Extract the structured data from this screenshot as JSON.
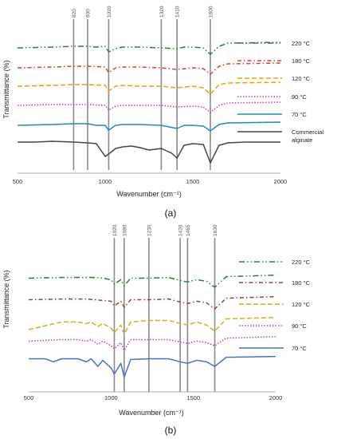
{
  "chart_data": [
    {
      "type": "line",
      "panel_label": "(a)",
      "xlabel": "Wavenumber (cm⁻¹)",
      "ylabel": "Transmittance (%)",
      "xlim": [
        500,
        2000
      ],
      "x_ticks": [
        "500",
        "1000",
        "1500",
        "2000"
      ],
      "reference_lines": [
        "820",
        "900",
        "1020",
        "1320",
        "1410",
        "1600"
      ],
      "legend_position": "right",
      "series": [
        {
          "name": "220 °C",
          "color": "#2e7d32",
          "dash": "7,3,1.5,3,1.5,3",
          "offset": 0,
          "x": [
            500,
            700,
            820,
            900,
            950,
            1000,
            1020,
            1060,
            1100,
            1200,
            1320,
            1410,
            1450,
            1500,
            1560,
            1600,
            1650,
            1700,
            2000
          ],
          "y": [
            10,
            9,
            8,
            8,
            9,
            8,
            15,
            11,
            9,
            9,
            10,
            11,
            9,
            9,
            10,
            18,
            8,
            4,
            3
          ]
        },
        {
          "name": "180 °C",
          "color": "#e53935",
          "dash": "5,3,1.5,3",
          "offset": 1,
          "x": [
            500,
            700,
            820,
            900,
            1000,
            1020,
            1060,
            1100,
            1200,
            1320,
            1410,
            1500,
            1560,
            1600,
            1650,
            1700,
            2000
          ],
          "y": [
            10,
            9,
            8,
            8,
            9,
            16,
            10,
            9,
            9,
            10,
            12,
            10,
            11,
            18,
            8,
            5,
            4
          ]
        },
        {
          "name": "120 °C",
          "color": "#ff9800",
          "dash": "6,3",
          "offset": 2,
          "x": [
            500,
            700,
            820,
            900,
            1000,
            1020,
            1060,
            1100,
            1200,
            1320,
            1410,
            1500,
            1560,
            1600,
            1650,
            1700,
            2000
          ],
          "y": [
            10,
            9,
            8,
            8,
            9,
            16,
            10,
            9,
            10,
            10,
            12,
            10,
            12,
            20,
            8,
            6,
            5
          ]
        },
        {
          "name": "90 °C",
          "color": "#cc33cc",
          "dash": "1.5,2",
          "offset": 3,
          "x": [
            500,
            700,
            820,
            900,
            1000,
            1020,
            1060,
            1100,
            1200,
            1320,
            1410,
            1500,
            1560,
            1600,
            1650,
            1700,
            2000
          ],
          "y": [
            10,
            9,
            9,
            9,
            10,
            16,
            11,
            10,
            10,
            10,
            12,
            11,
            12,
            19,
            10,
            7,
            6
          ]
        },
        {
          "name": "70 °C",
          "color": "#1f8ac0",
          "dash": "",
          "offset": 4,
          "x": [
            500,
            700,
            820,
            900,
            950,
            1000,
            1020,
            1060,
            1100,
            1200,
            1320,
            1410,
            1450,
            1500,
            1560,
            1600,
            1650,
            1700,
            2000
          ],
          "y": [
            12,
            11,
            10,
            10,
            12,
            12,
            18,
            12,
            11,
            11,
            12,
            16,
            12,
            12,
            13,
            19,
            11,
            9,
            8
          ]
        },
        {
          "name": "Commercial alginate",
          "color": "#444444",
          "dash": "",
          "offset": 5,
          "x": [
            500,
            600,
            700,
            820,
            900,
            950,
            1000,
            1020,
            1060,
            1100,
            1150,
            1200,
            1250,
            1320,
            1380,
            1410,
            1450,
            1500,
            1560,
            1600,
            1650,
            1700,
            1800,
            2000
          ],
          "y": [
            10,
            10,
            9,
            10,
            11,
            12,
            28,
            25,
            18,
            16,
            15,
            17,
            20,
            18,
            24,
            30,
            14,
            12,
            13,
            36,
            14,
            11,
            10,
            10
          ]
        }
      ]
    },
    {
      "type": "line",
      "panel_label": "(b)",
      "xlabel": "Wavenumber (cm⁻¹)",
      "ylabel": "Transmittance (%)",
      "xlim": [
        500,
        2000
      ],
      "x_ticks": [
        "500",
        "1000",
        "1500",
        "2000"
      ],
      "reference_lines": [
        "1020",
        "1080",
        "1230",
        "1420",
        "1465",
        "1630"
      ],
      "legend_position": "right",
      "series": [
        {
          "name": "220 °C",
          "color": "#2e7d32",
          "dash": "7,3,1.5,3,1.5,3",
          "offset": 0,
          "x": [
            500,
            700,
            850,
            900,
            950,
            1000,
            1020,
            1060,
            1080,
            1120,
            1230,
            1350,
            1420,
            1465,
            1520,
            1580,
            1630,
            1700,
            2000
          ],
          "y": [
            10,
            9,
            9,
            9,
            10,
            12,
            18,
            12,
            20,
            10,
            10,
            9,
            13,
            15,
            12,
            14,
            22,
            8,
            6
          ]
        },
        {
          "name": "180 °C",
          "color": "#8b4a3a",
          "dash": "5,3,1.5,3",
          "offset": 1,
          "x": [
            500,
            700,
            850,
            900,
            1000,
            1020,
            1060,
            1080,
            1120,
            1230,
            1350,
            1420,
            1465,
            1520,
            1580,
            1630,
            1700,
            2000
          ],
          "y": [
            10,
            9,
            9,
            10,
            12,
            18,
            12,
            20,
            10,
            10,
            9,
            13,
            15,
            12,
            14,
            22,
            8,
            6
          ]
        },
        {
          "name": "120 °C",
          "color": "#d4b012",
          "dash": "6,3",
          "offset": 2,
          "x": [
            500,
            700,
            800,
            850,
            880,
            920,
            950,
            1000,
            1020,
            1060,
            1080,
            1120,
            1230,
            1350,
            1420,
            1465,
            1520,
            1580,
            1630,
            1700,
            2000
          ],
          "y": [
            22,
            12,
            12,
            14,
            12,
            18,
            14,
            20,
            26,
            16,
            28,
            12,
            10,
            10,
            14,
            16,
            12,
            16,
            24,
            8,
            6
          ]
        },
        {
          "name": "90 °C",
          "color": "#cc33cc",
          "dash": "1.5,2",
          "offset": 3,
          "x": [
            500,
            700,
            800,
            850,
            880,
            920,
            950,
            1000,
            1020,
            1060,
            1080,
            1120,
            1230,
            1350,
            1420,
            1465,
            1520,
            1580,
            1630,
            1700,
            2000
          ],
          "y": [
            12,
            10,
            10,
            12,
            10,
            16,
            12,
            18,
            22,
            14,
            24,
            10,
            10,
            10,
            13,
            15,
            12,
            14,
            18,
            8,
            6
          ]
        },
        {
          "name": "70 °C",
          "color": "#4a72c4",
          "dash": "",
          "offset": 4,
          "x": [
            500,
            600,
            650,
            700,
            800,
            850,
            880,
            920,
            950,
            1000,
            1020,
            1060,
            1080,
            1120,
            1230,
            1350,
            1420,
            1465,
            1520,
            1580,
            1630,
            1700,
            2000
          ],
          "y": [
            10,
            10,
            14,
            10,
            10,
            14,
            10,
            20,
            12,
            22,
            30,
            16,
            34,
            11,
            10,
            10,
            14,
            16,
            12,
            14,
            20,
            8,
            7
          ]
        }
      ]
    }
  ]
}
